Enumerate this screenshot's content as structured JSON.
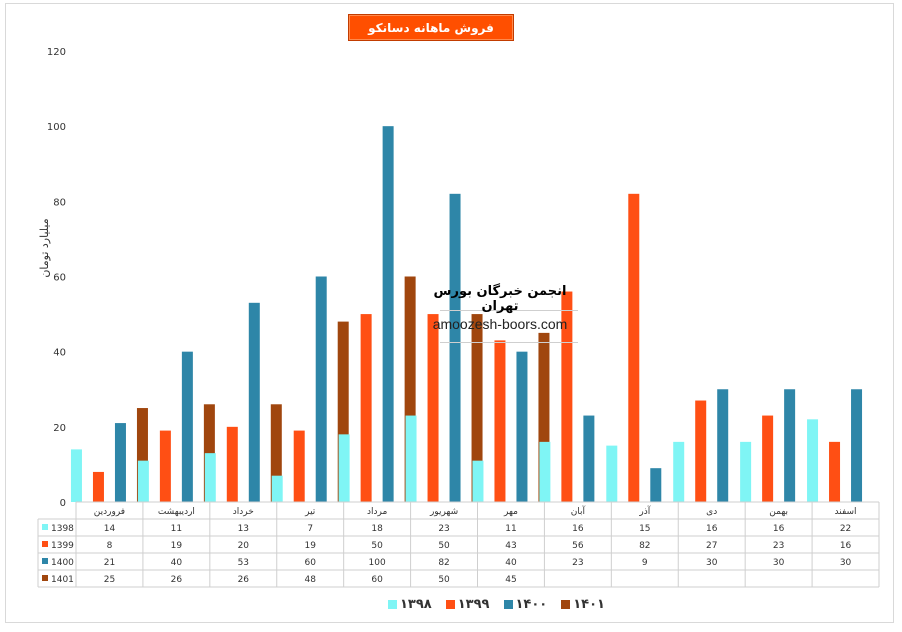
{
  "chart_data": {
    "type": "bar",
    "title": "فروش ماهانه دسانکو",
    "ylabel": "میلیارد تومان",
    "ylim": [
      0,
      120
    ],
    "yticks": [
      0,
      20,
      40,
      60,
      80,
      100,
      120
    ],
    "grid": false,
    "categories": [
      "فروردین",
      "اردیبهشت",
      "خرداد",
      "تیر",
      "مرداد",
      "شهریور",
      "مهر",
      "آبان",
      "آذر",
      "دی",
      "بهمن",
      "اسفند"
    ],
    "series": [
      {
        "name": "1398",
        "legend": "۱۳۹۸",
        "color": "#7ff5f5",
        "values": [
          14,
          11,
          13,
          7,
          18,
          23,
          11,
          16,
          15,
          16,
          16,
          22
        ]
      },
      {
        "name": "1399",
        "legend": "۱۳۹۹",
        "color": "#ff4f14",
        "values": [
          8,
          19,
          20,
          19,
          50,
          50,
          43,
          56,
          82,
          27,
          23,
          16
        ]
      },
      {
        "name": "1400",
        "legend": "۱۴۰۰",
        "color": "#2e86a8",
        "values": [
          21,
          40,
          53,
          60,
          100,
          82,
          40,
          23,
          9,
          30,
          30,
          30
        ]
      },
      {
        "name": "1401",
        "legend": "۱۴۰۱",
        "color": "#a0460e",
        "values": [
          25,
          26,
          26,
          48,
          60,
          50,
          45,
          null,
          null,
          null,
          null,
          null
        ]
      }
    ],
    "legend_position": "bottom",
    "data_table": true
  },
  "watermark": {
    "title": "انجمن خبرگان بورس تهران",
    "url": "amoozesh-boors.com"
  }
}
